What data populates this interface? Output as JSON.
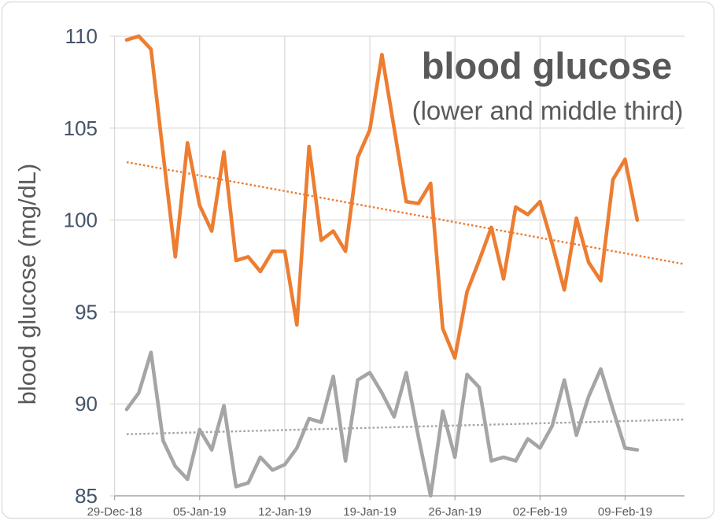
{
  "title": "blood glucose",
  "subtitle": "(lower and middle third)",
  "y_axis_title": "blood glucose (mg/dL)",
  "colors": {
    "middle_series": "#ED7D31",
    "lower_series": "#A5A5A5",
    "gridline": "#D9D9D9",
    "axis_line": "#A6A6A6",
    "y_tick_label": "#44546A",
    "x_tick_label": "#595959",
    "title_text": "#595959",
    "border": "#D9D9D9",
    "background": "#FFFFFF"
  },
  "chart_data": {
    "type": "line",
    "title": "blood glucose",
    "subtitle": "(lower and middle third)",
    "ylabel": "blood glucose (mg/dL)",
    "ylim": [
      85,
      110
    ],
    "yticks": [
      85,
      90,
      95,
      100,
      105,
      110
    ],
    "xtick_labels": [
      "29-Dec-18",
      "05-Jan-19",
      "12-Jan-19",
      "19-Jan-19",
      "26-Jan-19",
      "02-Feb-19",
      "09-Feb-19"
    ],
    "grid": true,
    "legend": false,
    "x_dates": [
      "30-Dec-18",
      "31-Dec-18",
      "01-Jan-19",
      "02-Jan-19",
      "03-Jan-19",
      "04-Jan-19",
      "05-Jan-19",
      "06-Jan-19",
      "07-Jan-19",
      "08-Jan-19",
      "09-Jan-19",
      "10-Jan-19",
      "11-Jan-19",
      "12-Jan-19",
      "13-Jan-19",
      "14-Jan-19",
      "15-Jan-19",
      "16-Jan-19",
      "17-Jan-19",
      "18-Jan-19",
      "19-Jan-19",
      "20-Jan-19",
      "21-Jan-19",
      "22-Jan-19",
      "23-Jan-19",
      "24-Jan-19",
      "25-Jan-19",
      "26-Jan-19",
      "27-Jan-19",
      "28-Jan-19",
      "29-Jan-19",
      "30-Jan-19",
      "31-Jan-19",
      "01-Feb-19",
      "02-Feb-19",
      "03-Feb-19",
      "04-Feb-19",
      "05-Feb-19",
      "06-Feb-19",
      "07-Feb-19",
      "08-Feb-19",
      "09-Feb-19",
      "10-Feb-19"
    ],
    "series": [
      {
        "name": "middle third",
        "color": "#ED7D31",
        "values": [
          109.8,
          110.0,
          109.3,
          103.6,
          98.0,
          104.2,
          100.8,
          99.4,
          103.7,
          97.8,
          98.0,
          97.2,
          98.3,
          98.3,
          94.3,
          104.0,
          98.9,
          99.4,
          98.3,
          103.4,
          104.9,
          109.0,
          105.0,
          101.0,
          100.9,
          102.0,
          94.1,
          92.5,
          96.1,
          97.8,
          99.6,
          96.8,
          100.7,
          100.3,
          101.0,
          98.7,
          96.2,
          100.1,
          97.7,
          96.7,
          102.2,
          103.3,
          100.0
        ]
      },
      {
        "name": "lower third",
        "color": "#A5A5A5",
        "values": [
          89.7,
          90.6,
          92.8,
          88.0,
          86.6,
          85.9,
          88.6,
          87.5,
          89.9,
          85.5,
          85.7,
          87.1,
          86.4,
          86.7,
          87.6,
          89.2,
          89.0,
          91.5,
          86.9,
          91.3,
          91.7,
          90.6,
          89.3,
          91.7,
          88.2,
          85.0,
          89.6,
          87.1,
          91.6,
          90.9,
          86.9,
          87.1,
          86.9,
          88.1,
          87.6,
          88.8,
          91.3,
          88.3,
          90.4,
          91.9,
          89.7,
          87.6,
          87.5
        ]
      }
    ],
    "trendlines": [
      {
        "series": "middle third",
        "color": "#ED7D31",
        "style": "dotted",
        "start_value": 103.15,
        "end_value": 97.6
      },
      {
        "series": "lower third",
        "color": "#A5A5A5",
        "style": "dotted",
        "start_value": 88.35,
        "end_value": 89.15
      }
    ]
  }
}
